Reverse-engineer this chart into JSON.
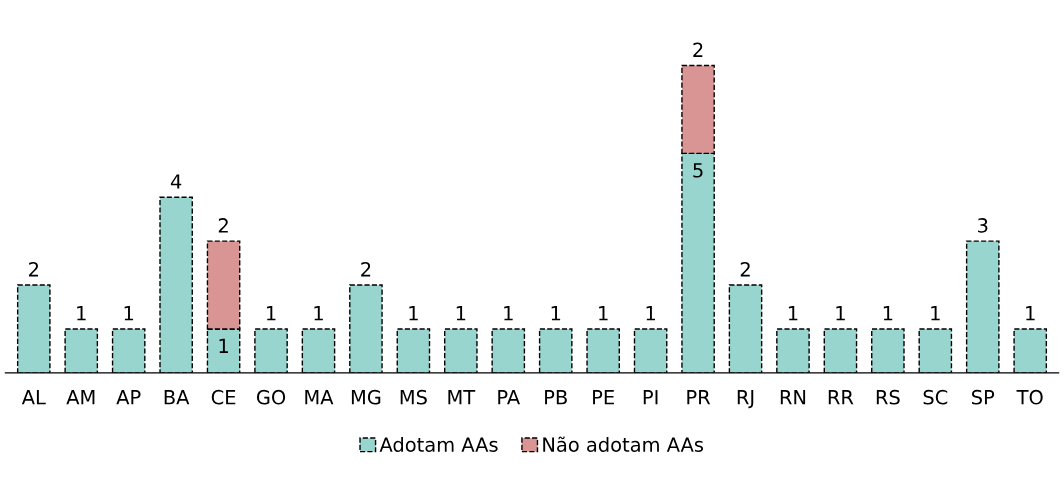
{
  "chart_data": {
    "type": "bar",
    "stacked": true,
    "data_labels": true,
    "legend": "bottom",
    "grid": false,
    "line_style": "dashed",
    "categories": [
      "AL",
      "AM",
      "AP",
      "BA",
      "CE",
      "GO",
      "MA",
      "MG",
      "MS",
      "MT",
      "PA",
      "PB",
      "PE",
      "PI",
      "PR",
      "RJ",
      "RN",
      "RR",
      "RS",
      "SC",
      "SP",
      "TO"
    ],
    "series": [
      {
        "name": "Adotam AAs",
        "color": "#99d5cf",
        "values": [
          2,
          1,
          1,
          4,
          1,
          1,
          1,
          2,
          1,
          1,
          1,
          1,
          1,
          1,
          5,
          2,
          1,
          1,
          1,
          1,
          3,
          1
        ]
      },
      {
        "name": "Não adotam AAs",
        "color": "#d99594",
        "values": [
          null,
          null,
          null,
          null,
          2,
          null,
          null,
          null,
          null,
          null,
          null,
          null,
          null,
          null,
          2,
          null,
          null,
          null,
          null,
          null,
          null,
          null
        ]
      }
    ]
  }
}
